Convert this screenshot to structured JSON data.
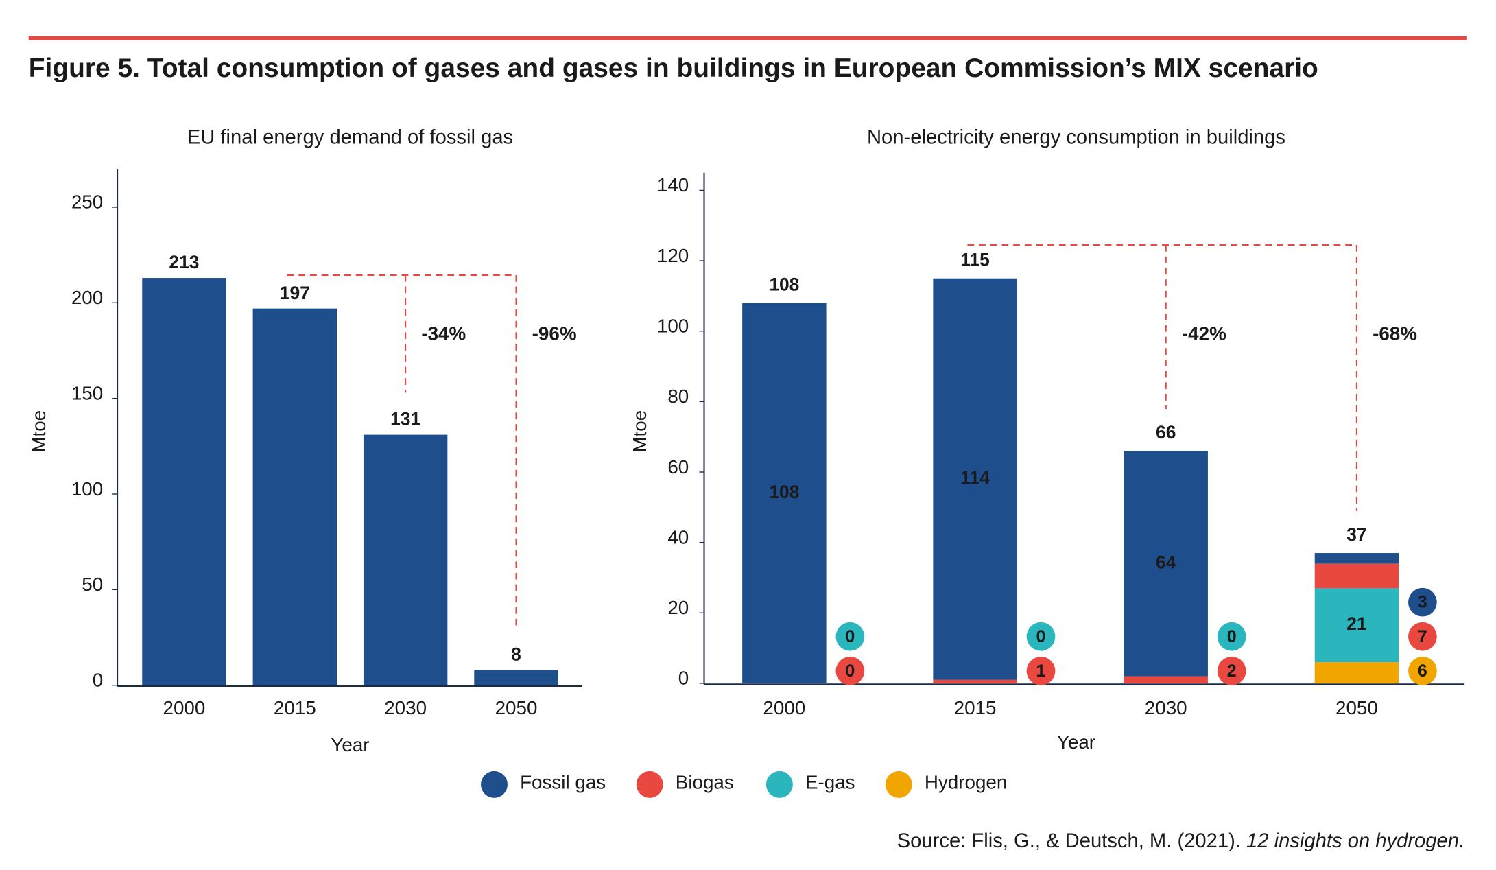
{
  "title": "Figure 5. Total consumption of gases and gases in buildings in European Commission’s MIX scenario",
  "source": "Source: Flis, G., & Deutsch, M. (2021). ",
  "source_italic": "12 insights on hydrogen.",
  "chart_data": [
    {
      "type": "bar",
      "title": "EU final energy demand of fossil gas",
      "categories": [
        "2000",
        "2015",
        "2030",
        "2050"
      ],
      "values": [
        213,
        197,
        131,
        8
      ],
      "color": "#1f4e8c",
      "ylim": [
        0,
        270
      ],
      "yticks": [
        0,
        50,
        100,
        150,
        200,
        250
      ],
      "xlabel": "Year",
      "ylabel": "Mtoe",
      "annotations": [
        "-34%",
        "-96%"
      ]
    },
    {
      "type": "stacked_bar",
      "title": "Non-electricity energy consumption in buildings",
      "categories": [
        "2000",
        "2015",
        "2030",
        "2050"
      ],
      "series": [
        {
          "name": "Fossil gas",
          "color": "#1f4e8c",
          "values": [
            108,
            114,
            64,
            3
          ]
        },
        {
          "name": "Biogas",
          "color": "#e8483f",
          "values": [
            0,
            1,
            2,
            7
          ]
        },
        {
          "name": "E-gas",
          "color": "#2bb5bd",
          "values": [
            0,
            0,
            0,
            21
          ]
        },
        {
          "name": "Hydrogen",
          "color": "#f0a500",
          "values": [
            null,
            null,
            null,
            6
          ]
        }
      ],
      "totals": [
        108,
        115,
        66,
        37
      ],
      "ylim": [
        0,
        145
      ],
      "yticks": [
        0,
        20,
        40,
        60,
        80,
        100,
        120,
        140
      ],
      "xlabel": "Year",
      "ylabel": "Mtoe",
      "annotations": [
        "-42%",
        "-68%"
      ]
    }
  ]
}
